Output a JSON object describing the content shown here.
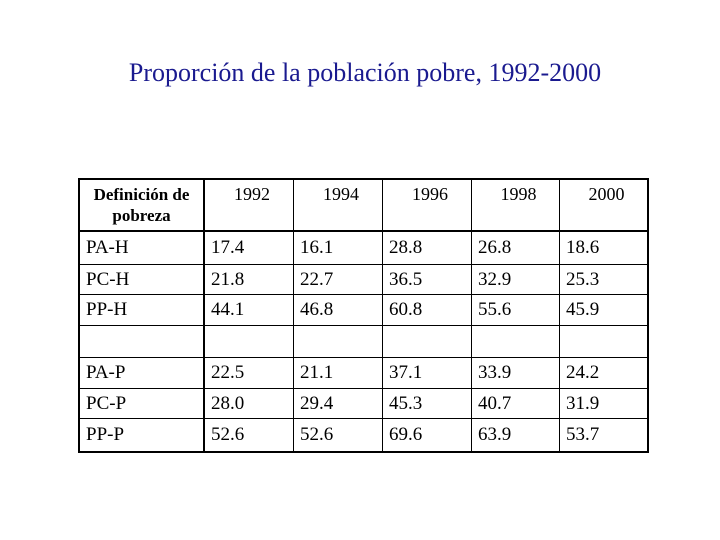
{
  "title": "Proporción de la población pobre, 1992-2000",
  "table": {
    "header": {
      "definition_label": "Definición de pobreza",
      "years": [
        "1992",
        "1994",
        "1996",
        "1998",
        "2000"
      ]
    },
    "rows": [
      {
        "label": "PA-H",
        "values": [
          "17.4",
          "16.1",
          "28.8",
          "26.8",
          "18.6"
        ]
      },
      {
        "label": "PC-H",
        "values": [
          "21.8",
          "22.7",
          "36.5",
          "32.9",
          "25.3"
        ]
      },
      {
        "label": "PP-H",
        "values": [
          "44.1",
          "46.8",
          "60.8",
          "55.6",
          "45.9"
        ]
      },
      {
        "label": "",
        "values": [
          "",
          "",
          "",
          "",
          ""
        ]
      },
      {
        "label": "PA-P",
        "values": [
          "22.5",
          "21.1",
          "37.1",
          "33.9",
          "24.2"
        ]
      },
      {
        "label": "PC-P",
        "values": [
          "28.0",
          "29.4",
          "45.3",
          "40.7",
          "31.9"
        ]
      },
      {
        "label": "PP-P",
        "values": [
          "52.6",
          "52.6",
          "69.6",
          "63.9",
          "53.7"
        ]
      }
    ]
  },
  "colors": {
    "title": "#1a1a8f",
    "text": "#000000",
    "border": "#000000"
  }
}
